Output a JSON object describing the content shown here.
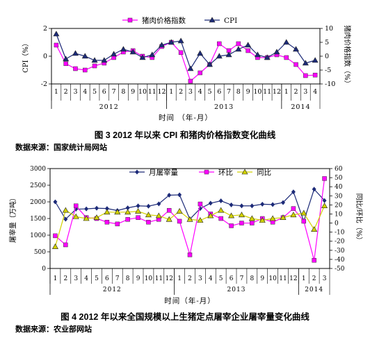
{
  "chart_data": [
    {
      "type": "line",
      "legend": [
        "猪肉价格指数",
        "CPI"
      ],
      "legend_position": "top",
      "y_left_label": "CPI（%）",
      "y_right_label": "猪肉价格指数（%）",
      "x_label": "时间 （年-月）",
      "y_left_range": [
        -2,
        2
      ],
      "y_left_ticks": [
        "2",
        "0",
        "-2"
      ],
      "y_right_range": [
        -10,
        10
      ],
      "y_right_ticks": [
        "10",
        "5",
        "0",
        "-5",
        "-10"
      ],
      "x_months": [
        "1",
        "2",
        "3",
        "4",
        "5",
        "6",
        "7",
        "8",
        "9",
        "10",
        "11",
        "12",
        "1",
        "2",
        "3",
        "4",
        "5",
        "6",
        "7",
        "8",
        "9",
        "10",
        "11",
        "12",
        "1",
        "2",
        "3",
        "4"
      ],
      "year_labels": [
        "2012",
        "2013",
        "2014"
      ],
      "caption": "图 3  2012 年以来 CPI 和猪肉价格指数变化曲线",
      "source": "数据来源：国家统计局网站",
      "series": [
        {
          "name": "猪肉价格指数",
          "axis": "right",
          "color": "#ff00ff",
          "marker": "square",
          "values": [
            4,
            -2.7,
            -4.5,
            -5,
            -3.5,
            -2.5,
            -0.5,
            1.5,
            2,
            0,
            -0.5,
            3.5,
            5,
            1.3,
            -9,
            -6,
            -3,
            4.5,
            2,
            4.5,
            2,
            -0.5,
            -0.5,
            0.5,
            -0.5,
            -3,
            -7,
            -6.8
          ]
        },
        {
          "name": "CPI",
          "axis": "left",
          "color": "#1c2a78",
          "marker": "triangle",
          "values": [
            1.6,
            -0.2,
            0.2,
            0.0,
            -0.3,
            -0.3,
            0.15,
            0.5,
            0.3,
            -0.1,
            0.1,
            0.8,
            1.0,
            1.1,
            -0.9,
            0.2,
            -0.6,
            0.0,
            0.1,
            0.5,
            0.8,
            0.1,
            -0.1,
            0.3,
            1.0,
            0.5,
            -0.5,
            -0.3
          ]
        }
      ]
    },
    {
      "type": "line",
      "legend": [
        "月屠宰量",
        "环比",
        "同比"
      ],
      "legend_position": "top",
      "y_left_label": "屠宰量（万吨）",
      "y_right_label": "同比/环比（%）",
      "x_label": "时间（年-月）",
      "y_left_range": [
        0,
        3000
      ],
      "y_left_ticks": [
        "3000",
        "2500",
        "2000",
        "1500",
        "1000",
        "500",
        "0"
      ],
      "y_right_range": [
        -50,
        60
      ],
      "y_right_ticks": [
        "60",
        "50",
        "40",
        "30",
        "20",
        "10",
        "0",
        "-10",
        "-20",
        "-30",
        "-40",
        "-50"
      ],
      "x_months": [
        "1",
        "2",
        "3",
        "4",
        "5",
        "6",
        "7",
        "8",
        "9",
        "10",
        "11",
        "12",
        "1",
        "2",
        "3",
        "4",
        "5",
        "6",
        "7",
        "8",
        "9",
        "10",
        "11",
        "12",
        "1",
        "2",
        "3"
      ],
      "year_labels": [
        "2012",
        "2013",
        "2014"
      ],
      "caption": "图 4    2012 年以来全国规模以上生猪定点屠宰企业屠宰量变化曲线",
      "source": "数据来源：农业部网站",
      "series": [
        {
          "name": "月屠宰量",
          "axis": "left",
          "color": "#1c2a78",
          "marker": "diamond",
          "values": [
            2000,
            1480,
            1780,
            1790,
            1810,
            1800,
            1740,
            1820,
            1880,
            1870,
            1940,
            2200,
            2210,
            1480,
            1800,
            1960,
            2030,
            1910,
            1880,
            1880,
            1930,
            1920,
            1980,
            2300,
            1420,
            2380,
            2040
          ]
        },
        {
          "name": "环比",
          "axis": "right",
          "color": "#ff00ff",
          "marker": "square",
          "values": [
            -14,
            -24,
            19,
            6,
            5,
            1,
            -1,
            4,
            6,
            1,
            4,
            14,
            2,
            -35,
            21,
            10,
            5,
            -3,
            0,
            0,
            5,
            1,
            6,
            16,
            2,
            -41,
            49
          ]
        },
        {
          "name": "同比",
          "axis": "right",
          "color": "#d2d200",
          "marker": "triangle",
          "values": [
            -26,
            14,
            7,
            5,
            6,
            12,
            12,
            12,
            13,
            9,
            8,
            4,
            13,
            4,
            3,
            8,
            14,
            8,
            9,
            5,
            3,
            5,
            6,
            9,
            11,
            -7,
            19
          ]
        }
      ]
    }
  ]
}
